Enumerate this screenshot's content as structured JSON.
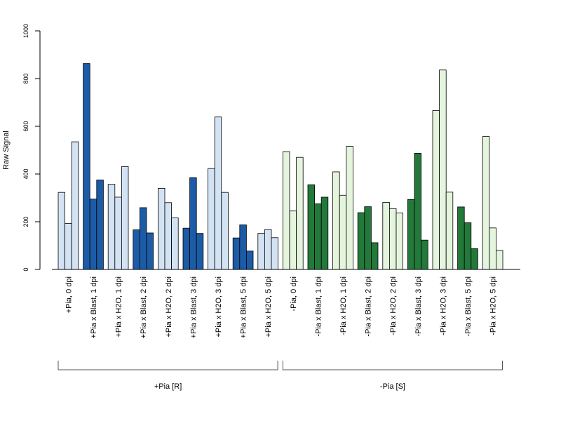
{
  "chart_data": {
    "type": "bar",
    "title": "",
    "xlabel": "",
    "ylabel": "Raw Signal",
    "ylim": [
      0,
      1000
    ],
    "yticks": [
      0,
      200,
      400,
      600,
      800,
      1000
    ],
    "grid": false,
    "categories": [
      "+Pia, 0 dpi",
      "+Pia x Blast, 1 dpi",
      "+Pia x H2O, 1 dpi",
      "+Pia x Blast, 2 dpi",
      "+Pia x H2O, 2 dpi",
      "+Pia x Blast, 3 dpi",
      "+Pia x H2O, 3 dpi",
      "+Pia x Blast, 5 dpi",
      "+Pia x H2O, 5 dpi",
      "-Pia, 0 dpi",
      "-Pia x Blast, 1 dpi",
      "-Pia x H2O, 1 dpi",
      "-Pia x Blast, 2 dpi",
      "-Pia x H2O, 2 dpi",
      "-Pia x Blast, 3 dpi",
      "-Pia x H2O, 3 dpi",
      "-Pia x Blast, 5 dpi",
      "-Pia x H2O, 5 dpi"
    ],
    "values": [
      [
        323,
        193,
        535
      ],
      [
        863,
        295,
        375
      ],
      [
        357,
        303,
        431
      ],
      [
        166,
        259,
        153
      ],
      [
        340,
        280,
        216
      ],
      [
        173,
        385,
        151
      ],
      [
        423,
        639,
        323
      ],
      [
        132,
        187,
        77
      ],
      [
        151,
        167,
        133
      ],
      [
        494,
        245,
        470
      ],
      [
        355,
        275,
        303
      ],
      [
        409,
        311,
        516
      ],
      [
        238,
        263,
        112
      ],
      [
        281,
        255,
        237
      ],
      [
        293,
        487,
        123
      ],
      [
        666,
        836,
        324
      ],
      [
        262,
        196,
        87
      ],
      [
        557,
        174,
        80
      ]
    ],
    "bar_colors": [
      "#d3e3f3",
      "#1c5ba6",
      "#d3e3f3",
      "#1c5ba6",
      "#d3e3f3",
      "#1c5ba6",
      "#d3e3f3",
      "#1c5ba6",
      "#d3e3f3",
      "#e4f4dd",
      "#23793a",
      "#e4f4dd",
      "#23793a",
      "#e4f4dd",
      "#23793a",
      "#e4f4dd",
      "#23793a",
      "#e4f4dd"
    ],
    "groups": [
      {
        "label": "+Pia [R]",
        "from": 0,
        "to": 8
      },
      {
        "label": "-Pia [S]",
        "from": 9,
        "to": 17
      }
    ]
  }
}
